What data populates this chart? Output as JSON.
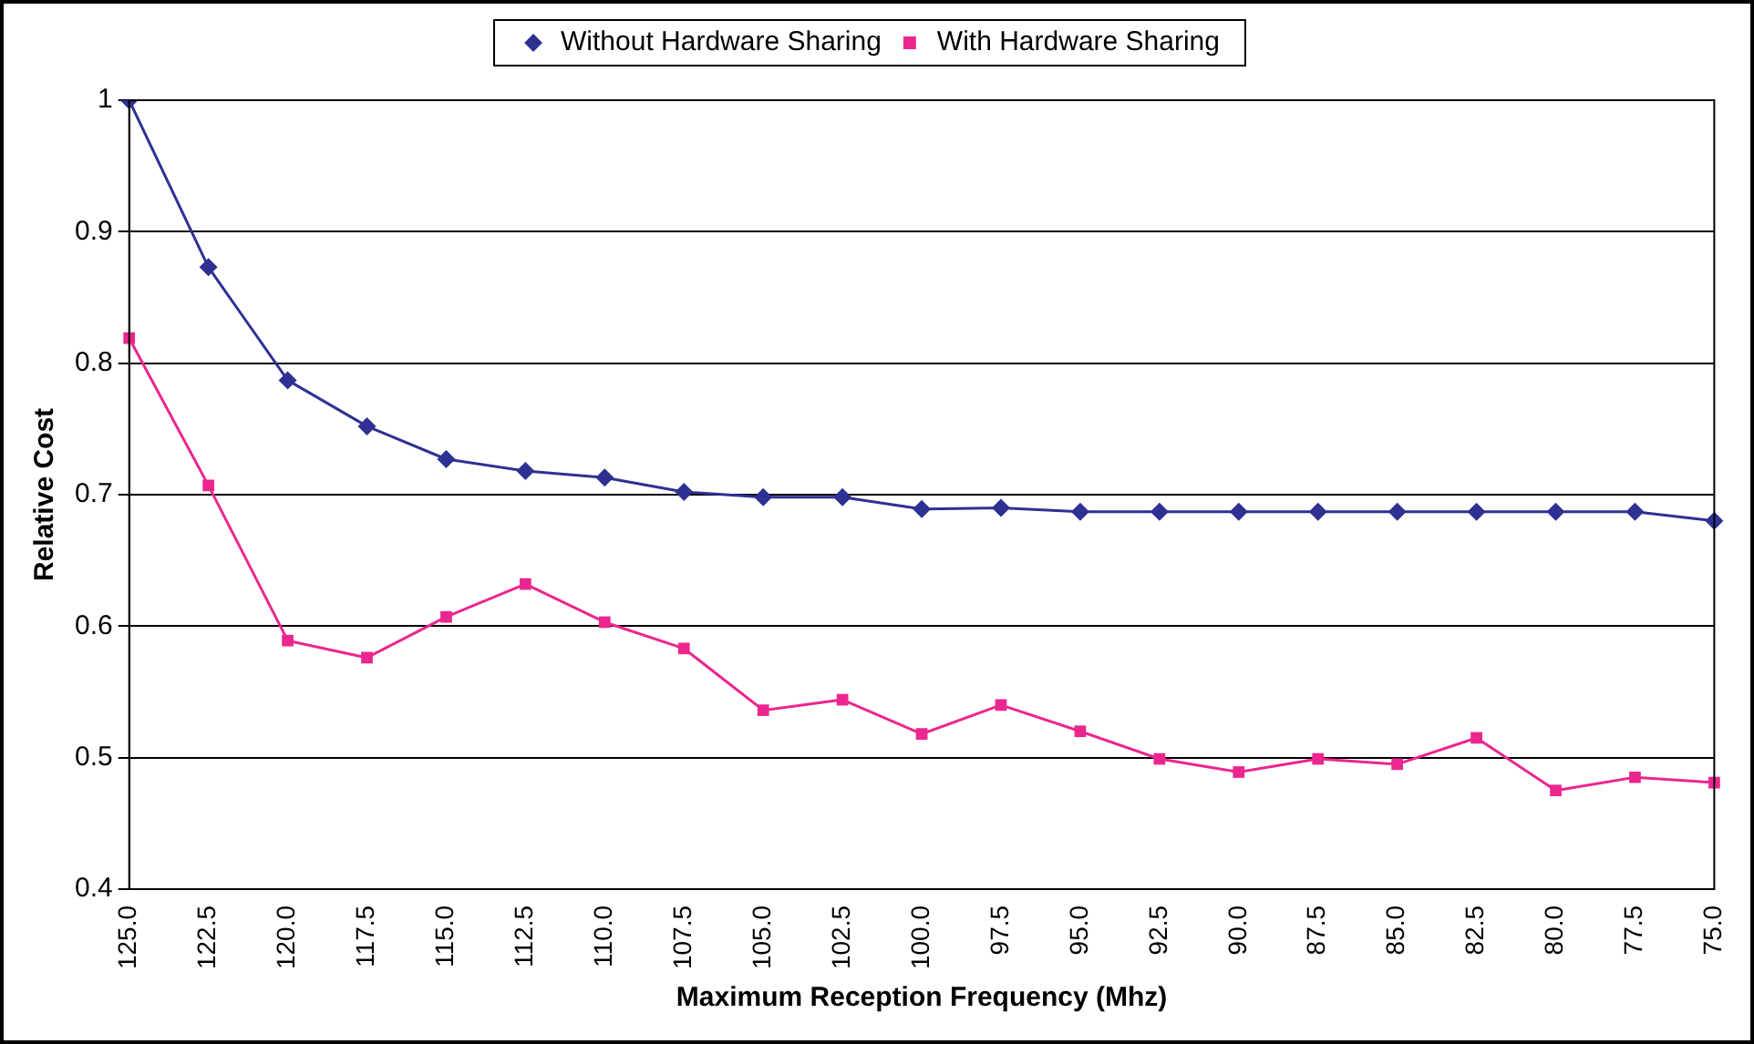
{
  "chart_data": {
    "type": "line",
    "xlabel": "Maximum Reception Frequency (Mhz)",
    "ylabel": "Relative Cost",
    "categories": [
      "125.0",
      "122.5",
      "120.0",
      "117.5",
      "115.0",
      "112.5",
      "110.0",
      "107.5",
      "105.0",
      "102.5",
      "100.0",
      "97.5",
      "95.0",
      "92.5",
      "90.0",
      "87.5",
      "85.0",
      "82.5",
      "80.0",
      "77.5",
      "75.0"
    ],
    "series": [
      {
        "name": "Without Hardware Sharing",
        "color": "#2e3192",
        "marker": "diamond",
        "values": [
          1.0,
          0.873,
          0.787,
          0.752,
          0.727,
          0.718,
          0.713,
          0.702,
          0.698,
          0.698,
          0.689,
          0.69,
          0.687,
          0.687,
          0.687,
          0.687,
          0.687,
          0.687,
          0.687,
          0.687,
          0.68
        ]
      },
      {
        "name": "With Hardware Sharing",
        "color": "#ec268f",
        "marker": "square",
        "values": [
          0.819,
          0.707,
          0.589,
          0.576,
          0.607,
          0.632,
          0.603,
          0.583,
          0.536,
          0.544,
          0.518,
          0.54,
          0.52,
          0.499,
          0.489,
          0.499,
          0.495,
          0.515,
          0.475,
          0.485,
          0.481
        ]
      }
    ],
    "ylim": [
      0.4,
      1
    ],
    "yticks": [
      0.4,
      0.5,
      0.6,
      0.7,
      0.8,
      0.9,
      1
    ],
    "grid": "y",
    "legend": "top",
    "line_style": "solid"
  }
}
